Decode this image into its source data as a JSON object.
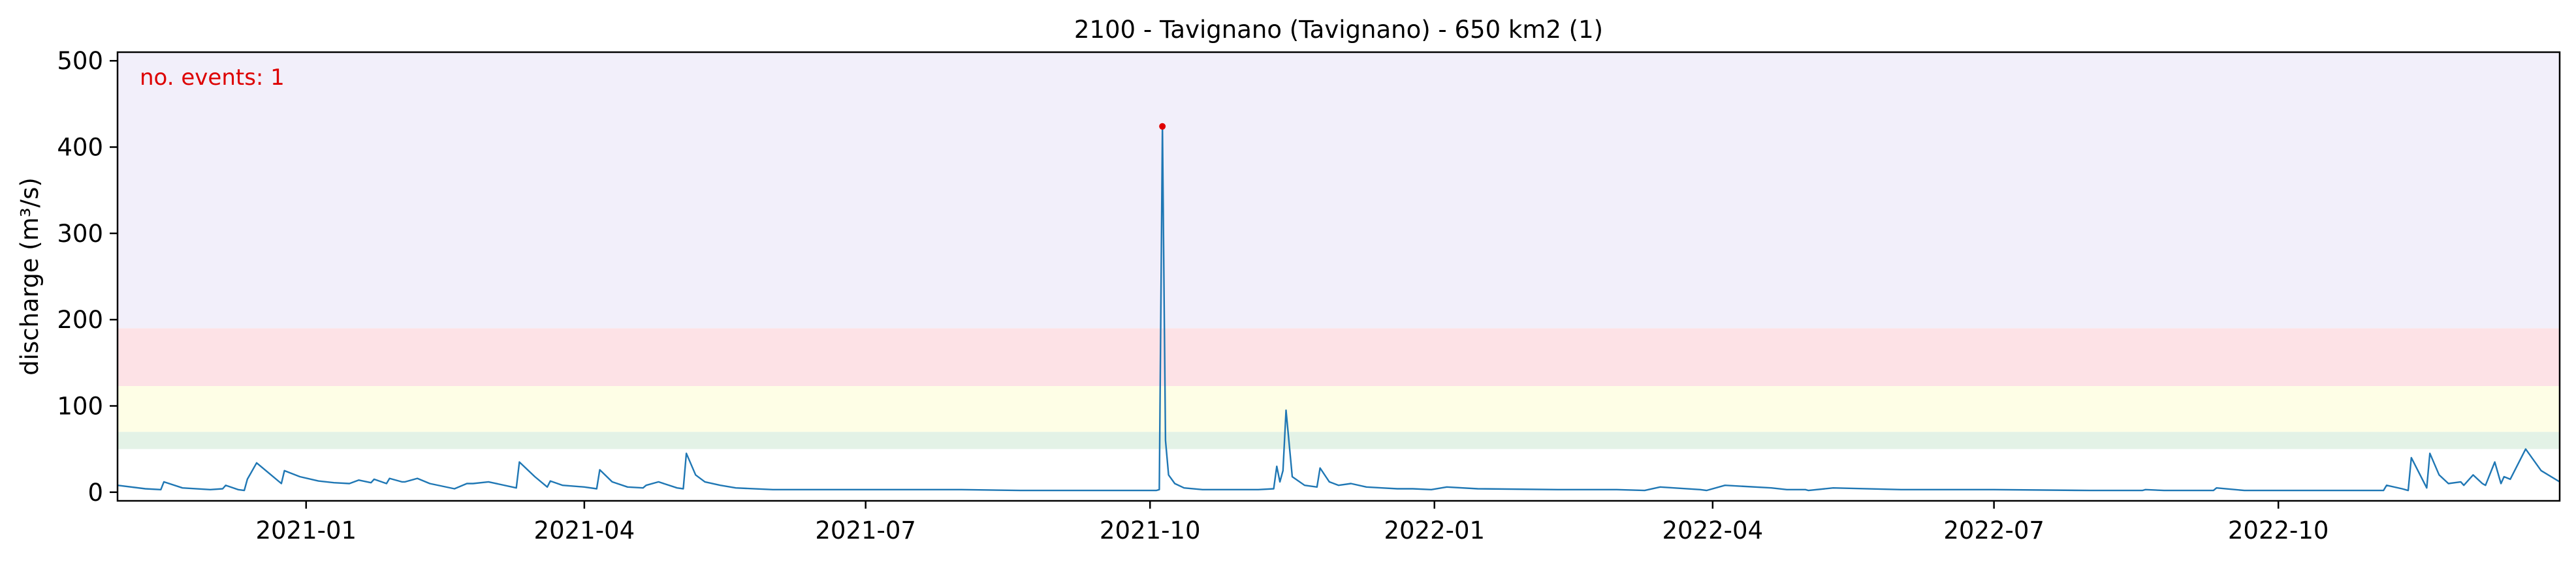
{
  "chart_data": {
    "type": "line",
    "title": "2100 - Tavignano (Tavignano) - 650 km2 (1)",
    "xlabel": "",
    "ylabel": "discharge (m³/s)",
    "annotation": "no. events: 1",
    "xlim": [
      "2020-11-01",
      "2022-12-31"
    ],
    "ylim": [
      -10,
      510
    ],
    "yticks": [
      0,
      100,
      200,
      300,
      400,
      500
    ],
    "xticks": [
      "2021-01",
      "2021-04",
      "2021-07",
      "2021-10",
      "2022-01",
      "2022-04",
      "2022-07",
      "2022-10"
    ],
    "xtick_dates": [
      "2021-01-01",
      "2021-04-01",
      "2021-07-01",
      "2021-10-01",
      "2022-01-01",
      "2022-04-01",
      "2022-07-01",
      "2022-10-01"
    ],
    "threshold_bands": [
      {
        "from": 50,
        "to": 70,
        "color": "#e3f2e6"
      },
      {
        "from": 70,
        "to": 123,
        "color": "#fefee6"
      },
      {
        "from": 123,
        "to": 190,
        "color": "#fde2e6"
      },
      {
        "from": 190,
        "to": 510,
        "color": "#f2effa"
      }
    ],
    "line_color": "#1f77b4",
    "event_marker_color": "#e00000",
    "events": [
      {
        "x": "2021-10-05",
        "y": 424
      }
    ],
    "series": [
      {
        "x": [
          "2020-11-01",
          "2020-11-10",
          "2020-11-15",
          "2020-11-16",
          "2020-11-22",
          "2020-12-01",
          "2020-12-05",
          "2020-12-06",
          "2020-12-10",
          "2020-12-12",
          "2020-12-13",
          "2020-12-16",
          "2020-12-20",
          "2020-12-24",
          "2020-12-25",
          "2020-12-30",
          "2021-01-05",
          "2021-01-10",
          "2021-01-15",
          "2021-01-18",
          "2021-01-22",
          "2021-01-23",
          "2021-01-27",
          "2021-01-28",
          "2021-02-01",
          "2021-02-02",
          "2021-02-06",
          "2021-02-10",
          "2021-02-18",
          "2021-02-22",
          "2021-02-24",
          "2021-03-01",
          "2021-03-10",
          "2021-03-11",
          "2021-03-16",
          "2021-03-20",
          "2021-03-21",
          "2021-03-25",
          "2021-04-01",
          "2021-04-05",
          "2021-04-06",
          "2021-04-10",
          "2021-04-15",
          "2021-04-20",
          "2021-04-21",
          "2021-04-25",
          "2021-05-01",
          "2021-05-03",
          "2021-05-04",
          "2021-05-07",
          "2021-05-10",
          "2021-05-15",
          "2021-05-20",
          "2021-06-01",
          "2021-06-20",
          "2021-07-10",
          "2021-08-01",
          "2021-08-20",
          "2021-09-10",
          "2021-09-30",
          "2021-10-03",
          "2021-10-04",
          "2021-10-05",
          "2021-10-06",
          "2021-10-07",
          "2021-10-09",
          "2021-10-12",
          "2021-10-18",
          "2021-10-25",
          "2021-11-01",
          "2021-11-05",
          "2021-11-10",
          "2021-11-11",
          "2021-11-12",
          "2021-11-13",
          "2021-11-14",
          "2021-11-16",
          "2021-11-20",
          "2021-11-24",
          "2021-11-25",
          "2021-11-28",
          "2021-12-01",
          "2021-12-05",
          "2021-12-10",
          "2021-12-15",
          "2021-12-20",
          "2021-12-25",
          "2021-12-31",
          "2022-01-05",
          "2022-01-15",
          "2022-02-10",
          "2022-03-01",
          "2022-03-10",
          "2022-03-15",
          "2022-03-28",
          "2022-03-30",
          "2022-04-05",
          "2022-04-20",
          "2022-04-25",
          "2022-05-01",
          "2022-05-02",
          "2022-05-10",
          "2022-06-01",
          "2022-07-01",
          "2022-08-01",
          "2022-08-18",
          "2022-08-19",
          "2022-08-25",
          "2022-09-01",
          "2022-09-10",
          "2022-09-11",
          "2022-09-20",
          "2022-10-10",
          "2022-10-20",
          "2022-11-04",
          "2022-11-05",
          "2022-11-10",
          "2022-11-12",
          "2022-11-13",
          "2022-11-18",
          "2022-11-19",
          "2022-11-22",
          "2022-11-25",
          "2022-11-29",
          "2022-11-30",
          "2022-12-03",
          "2022-12-06",
          "2022-12-07",
          "2022-12-10",
          "2022-12-12",
          "2022-12-13",
          "2022-12-15",
          "2022-12-20",
          "2022-12-25",
          "2022-12-31"
        ],
        "y": [
          8,
          4,
          3,
          12,
          5,
          3,
          4,
          8,
          3,
          2,
          15,
          34,
          22,
          10,
          25,
          18,
          13,
          11,
          10,
          14,
          11,
          15,
          10,
          16,
          12,
          12,
          16,
          10,
          4,
          10,
          10,
          12,
          5,
          35,
          18,
          6,
          13,
          8,
          6,
          4,
          26,
          12,
          6,
          5,
          8,
          12,
          5,
          4,
          45,
          20,
          12,
          8,
          5,
          3,
          3,
          3,
          3,
          2,
          2,
          2,
          2,
          3,
          424,
          60,
          20,
          10,
          5,
          3,
          3,
          3,
          3,
          4,
          30,
          12,
          25,
          95,
          18,
          8,
          6,
          28,
          12,
          8,
          10,
          6,
          5,
          4,
          4,
          3,
          6,
          4,
          3,
          3,
          2,
          6,
          3,
          2,
          8,
          5,
          3,
          3,
          2,
          5,
          3,
          3,
          2,
          2,
          3,
          2,
          2,
          2,
          5,
          2,
          2,
          2,
          2,
          8,
          4,
          2,
          40,
          5,
          45,
          20,
          10,
          12,
          8,
          20,
          10,
          8,
          35,
          10,
          18,
          15,
          50,
          25,
          12
        ]
      }
    ]
  }
}
